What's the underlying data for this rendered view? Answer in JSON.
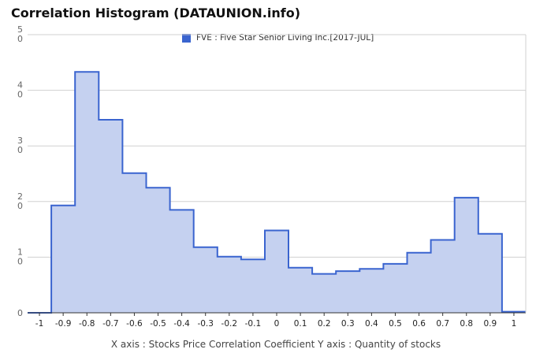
{
  "title": "Correlation Histogram (DATAUNION.info)",
  "caption": "X axis : Stocks Price Correlation Coefficient  Y axis : Quantity of stocks",
  "chart_data": {
    "type": "area",
    "title": "Correlation Histogram (DATAUNION.info)",
    "xlabel": "X axis : Stocks Price Correlation Coefficient",
    "ylabel": "Y axis : Quantity of stocks",
    "ylim": [
      0,
      50
    ],
    "y_ticks": [
      0,
      10,
      20,
      30,
      40,
      50
    ],
    "x_tick_labels": [
      "-1",
      "-0.9",
      "-0.8",
      "-0.7",
      "-0.6",
      "-0.5",
      "-0.4",
      "-0.3",
      "-0.2",
      "-0.1",
      "0",
      "0.1",
      "0.2",
      "0.3",
      "0.4",
      "0.5",
      "0.6",
      "0.7",
      "0.8",
      "0.9",
      "1"
    ],
    "grid": true,
    "legend_position": "top-center",
    "series": [
      {
        "name": "FVE : Five Star Senior Living Inc.[2017-JUL]",
        "color": "#3a64cf",
        "fill": "#c5d1f0",
        "x": [
          -1,
          -0.9,
          -0.8,
          -0.7,
          -0.6,
          -0.5,
          -0.4,
          -0.3,
          -0.2,
          -0.1,
          0,
          0.1,
          0.2,
          0.3,
          0.4,
          0.5,
          0.6,
          0.7,
          0.8,
          0.9,
          1
        ],
        "values": [
          0,
          19.3,
          43.3,
          34.7,
          25.1,
          22.5,
          18.5,
          11.8,
          10.1,
          9.6,
          14.8,
          8.1,
          7.0,
          7.5,
          7.9,
          8.8,
          10.8,
          13.1,
          20.7,
          14.2,
          0.2
        ]
      }
    ]
  }
}
